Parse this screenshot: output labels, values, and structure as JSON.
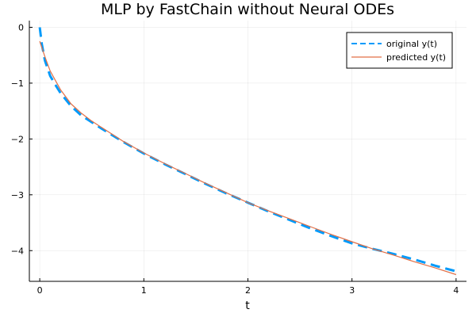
{
  "chart_data": {
    "type": "line",
    "title": "MLP by FastChain without Neural ODEs",
    "xlabel": "t",
    "ylabel": "",
    "xlim": [
      -0.1,
      4.1
    ],
    "ylim": [
      -4.55,
      0.12
    ],
    "x_ticks": [
      0,
      1,
      2,
      3,
      4
    ],
    "x_tick_labels": [
      "0",
      "1",
      "2",
      "3",
      "4"
    ],
    "y_ticks": [
      0,
      -1,
      -2,
      -3,
      -4
    ],
    "y_tick_labels": [
      "0",
      "−1",
      "−2",
      "−3",
      "−4"
    ],
    "grid": true,
    "legend_position": "top-right",
    "series": [
      {
        "name": "original y(t)",
        "color": "#009AFA",
        "style": "dashed",
        "x": [
          0,
          0.02,
          0.05,
          0.1,
          0.15,
          0.2,
          0.3,
          0.4,
          0.5,
          0.6,
          0.8,
          1.0,
          1.2,
          1.4,
          1.6,
          1.8,
          2.0,
          2.2,
          2.4,
          2.6,
          2.8,
          3.0,
          3.2,
          3.4,
          3.6,
          3.8,
          4.0
        ],
        "y": [
          0,
          -0.3,
          -0.6,
          -0.87,
          -1.03,
          -1.18,
          -1.41,
          -1.58,
          -1.7,
          -1.82,
          -2.05,
          -2.26,
          -2.45,
          -2.63,
          -2.81,
          -2.98,
          -3.14,
          -3.3,
          -3.45,
          -3.6,
          -3.74,
          -3.87,
          -3.97,
          -4.06,
          -4.16,
          -4.27,
          -4.37
        ]
      },
      {
        "name": "predicted y(t)",
        "color": "#E26F46",
        "style": "solid",
        "x": [
          0,
          0.05,
          0.1,
          0.2,
          0.3,
          0.4,
          0.5,
          0.6,
          0.8,
          1.0,
          1.2,
          1.4,
          1.6,
          1.8,
          2.0,
          2.2,
          2.4,
          2.6,
          2.8,
          3.0,
          3.2,
          3.4,
          3.6,
          3.8,
          4.0
        ],
        "y": [
          -0.25,
          -0.53,
          -0.78,
          -1.12,
          -1.37,
          -1.54,
          -1.68,
          -1.8,
          -2.04,
          -2.25,
          -2.44,
          -2.62,
          -2.8,
          -2.97,
          -3.14,
          -3.29,
          -3.43,
          -3.57,
          -3.71,
          -3.84,
          -3.97,
          -4.08,
          -4.2,
          -4.31,
          -4.43
        ]
      }
    ]
  }
}
